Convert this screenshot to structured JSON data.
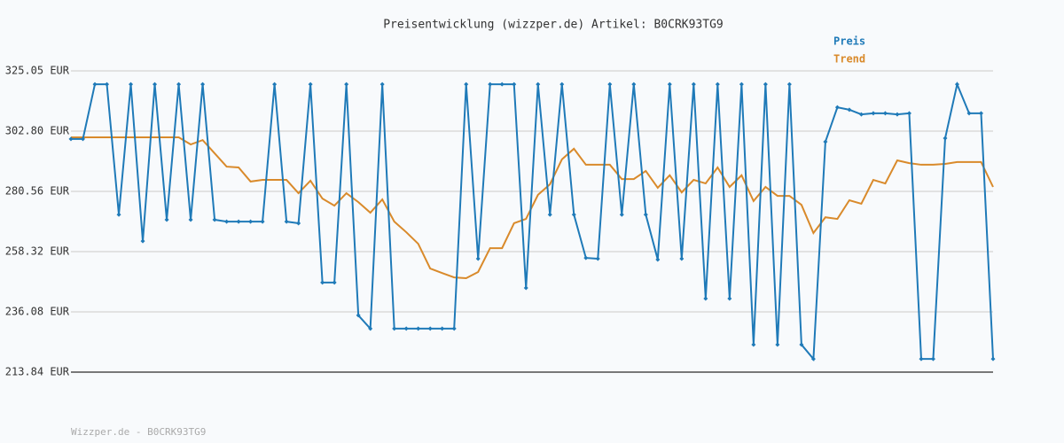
{
  "chart_data": {
    "type": "line",
    "title": "Preisentwicklung (wizzper.de) Artikel: B0CRK93TG9",
    "categories": [
      null,
      null,
      null,
      null,
      null,
      null,
      null,
      null,
      null,
      null,
      null,
      null,
      null,
      null,
      null,
      null,
      null,
      null,
      null,
      null,
      null,
      null,
      null,
      null,
      null,
      null,
      null,
      null,
      null,
      null,
      null,
      null,
      null,
      null,
      null,
      null,
      null,
      null,
      null,
      null,
      null,
      null,
      null,
      null,
      null,
      null,
      null,
      null,
      null,
      null,
      null,
      null,
      null,
      null,
      null,
      null,
      null,
      null,
      null,
      null,
      null,
      null,
      null,
      null,
      null,
      null,
      null,
      null,
      null,
      null,
      null,
      null,
      null,
      null,
      null,
      null,
      null,
      null
    ],
    "series": [
      {
        "name": "Preis",
        "color": "#1f7ab8",
        "values": [
          299.9,
          299.9,
          320.1,
          320.1,
          272.0,
          320.1,
          262.2,
          320.1,
          270.1,
          320.1,
          270.1,
          320.1,
          270.1,
          269.4,
          269.4,
          269.4,
          269.4,
          320.1,
          269.4,
          268.8,
          320.1,
          246.9,
          246.9,
          320.1,
          234.8,
          229.9,
          320.1,
          229.9,
          229.9,
          229.9,
          229.9,
          229.9,
          229.9,
          320.1,
          255.7,
          320.1,
          320.1,
          320.1,
          244.9,
          320.1,
          272.0,
          320.1,
          272.0,
          256.0,
          255.7,
          320.1,
          272.0,
          320.1,
          272.0,
          255.4,
          320.1,
          255.7,
          320.1,
          241.0,
          320.1,
          241.0,
          320.1,
          224.0,
          320.1,
          224.0,
          320.1,
          224.0,
          218.7,
          298.9,
          311.6,
          310.7,
          309.0,
          309.4,
          309.4,
          309.0,
          309.4,
          218.7,
          218.7,
          300.2,
          320.1,
          309.4,
          309.4,
          218.7
        ]
      },
      {
        "name": "Trend",
        "color": "#d98a2b",
        "values": [
          300.5,
          300.5,
          300.5,
          300.5,
          300.5,
          300.5,
          300.5,
          300.5,
          300.5,
          300.5,
          297.9,
          299.5,
          294.6,
          289.7,
          289.4,
          284.2,
          284.8,
          284.8,
          284.8,
          279.9,
          284.5,
          277.9,
          275.3,
          279.9,
          276.6,
          272.7,
          277.6,
          269.4,
          265.5,
          261.2,
          252.1,
          250.4,
          248.8,
          248.5,
          250.8,
          259.6,
          259.6,
          268.8,
          270.4,
          279.3,
          283.2,
          292.4,
          296.3,
          290.4,
          290.4,
          290.4,
          285.1,
          285.1,
          288.1,
          281.9,
          286.5,
          280.2,
          284.8,
          283.5,
          289.4,
          282.2,
          286.5,
          277.0,
          282.2,
          278.9,
          278.9,
          275.6,
          265.2,
          271.0,
          270.4,
          277.3,
          276.0,
          284.8,
          283.5,
          292.0,
          291.0,
          290.4,
          290.4,
          290.7,
          291.4,
          291.4,
          291.4,
          282.2
        ]
      }
    ],
    "ylim": [
      213.84,
      325.05
    ],
    "yticks": [
      {
        "value": 213.84,
        "label": "213.84 EUR"
      },
      {
        "value": 236.08,
        "label": "236.08 EUR"
      },
      {
        "value": 258.32,
        "label": "258.32 EUR"
      },
      {
        "value": 280.56,
        "label": "280.56 EUR"
      },
      {
        "value": 302.8,
        "label": "302.80 EUR"
      },
      {
        "value": 325.05,
        "label": "325.05 EUR"
      }
    ],
    "grid": true,
    "markers": "Preis"
  },
  "footer": "Wizzper.de - B0CRK93TG9"
}
